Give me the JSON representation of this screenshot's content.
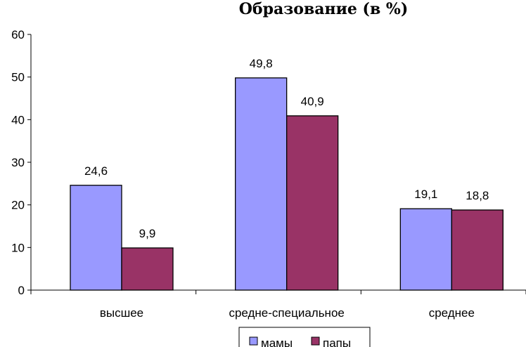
{
  "chart_data": {
    "type": "bar",
    "title": "Образование (в %)",
    "categories": [
      "высшее",
      "средне-специальное",
      "среднее"
    ],
    "series": [
      {
        "name": "мамы",
        "values": [
          24.6,
          49.8,
          19.1
        ],
        "labels": [
          "24,6",
          "49,8",
          "19,1"
        ],
        "color": "#9999FF"
      },
      {
        "name": "папы",
        "values": [
          9.9,
          40.9,
          18.8
        ],
        "labels": [
          "9,9",
          "40,9",
          "18,8"
        ],
        "color": "#993366"
      }
    ],
    "y_ticks": [
      "0",
      "10",
      "20",
      "30",
      "40",
      "50",
      "60"
    ],
    "ylim": [
      0,
      60
    ],
    "xlabel": "",
    "ylabel": "",
    "grid": false,
    "legend_position": "bottom"
  }
}
